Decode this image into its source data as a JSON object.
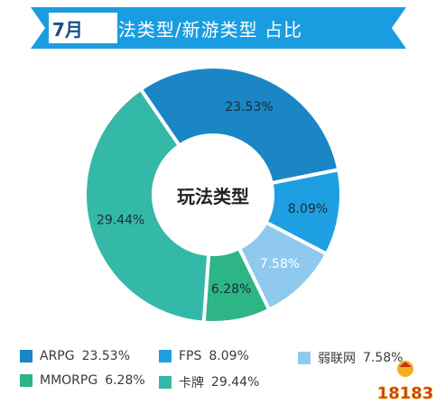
{
  "header": {
    "month": "7月",
    "title": "玩法类型/新游类型 占比"
  },
  "chart_data": {
    "type": "pie",
    "center_label": "玩法类型",
    "slices": [
      {
        "name": "ARPG",
        "value": 23.53,
        "label": "23.53%",
        "legend_value": "23.53%",
        "color": "#1a86c6"
      },
      {
        "name": "FPS",
        "value": 8.09,
        "label": "8.09%",
        "legend_value": "8.09%",
        "color": "#1d9fe2"
      },
      {
        "name": "弱联网",
        "value": 7.58,
        "label": "7.58%",
        "legend_value": "7.58%",
        "color": "#8fc9ee"
      },
      {
        "name": "MMORPG",
        "value": 6.28,
        "label": "6.28%",
        "legend_value": "6.28%",
        "color": "#2db586"
      },
      {
        "name": "卡牌",
        "value": 29.44,
        "label": "29.44%",
        "legend_value": "29.44%",
        "color": "#34b8a8"
      }
    ]
  },
  "colors": {
    "banner": "#1a9de0",
    "month_text": "#1a4f86"
  },
  "logo": {
    "text": "18183",
    "icon": "18183-logo-icon"
  }
}
